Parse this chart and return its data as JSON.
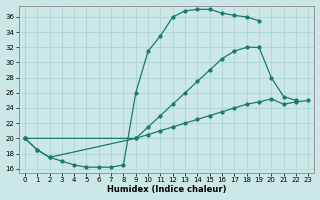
{
  "xlabel": "Humidex (Indice chaleur)",
  "bg_color": "#cce8e6",
  "grid_color": "#b0d8d5",
  "line_color": "#1a7a6e",
  "xlim": [
    -0.5,
    23.5
  ],
  "ylim": [
    15.5,
    37.5
  ],
  "yticks": [
    16,
    18,
    20,
    22,
    24,
    26,
    28,
    30,
    32,
    34,
    36
  ],
  "xticks": [
    0,
    1,
    2,
    3,
    4,
    5,
    6,
    7,
    8,
    9,
    10,
    11,
    12,
    13,
    14,
    15,
    16,
    17,
    18,
    19,
    20,
    21,
    22,
    23
  ],
  "curve1_x": [
    0,
    1,
    2,
    3,
    4,
    5,
    6,
    7,
    8,
    9,
    10,
    11,
    12,
    13,
    14,
    15,
    16,
    17,
    18,
    19
  ],
  "curve1_y": [
    20.0,
    18.5,
    17.5,
    17.0,
    16.5,
    16.2,
    16.2,
    16.2,
    16.5,
    26.0,
    31.5,
    33.5,
    36.0,
    36.8,
    37.0,
    37.0,
    36.5,
    36.2,
    36.0,
    35.5
  ],
  "curve2_x": [
    0,
    1,
    2,
    9,
    10,
    11,
    12,
    13,
    14,
    15,
    16,
    17,
    18,
    19,
    20,
    21,
    22
  ],
  "curve2_y": [
    20.0,
    18.5,
    17.5,
    20.0,
    21.5,
    23.0,
    24.5,
    26.0,
    27.5,
    29.0,
    30.5,
    31.5,
    32.0,
    32.0,
    28.0,
    25.5,
    25.0
  ],
  "curve3_x": [
    0,
    9,
    10,
    11,
    12,
    13,
    14,
    15,
    16,
    17,
    18,
    19,
    20,
    21,
    22,
    23
  ],
  "curve3_y": [
    20.0,
    20.0,
    20.5,
    21.0,
    21.5,
    22.0,
    22.5,
    23.0,
    23.5,
    24.0,
    24.5,
    24.8,
    25.2,
    24.5,
    24.8,
    25.0
  ]
}
